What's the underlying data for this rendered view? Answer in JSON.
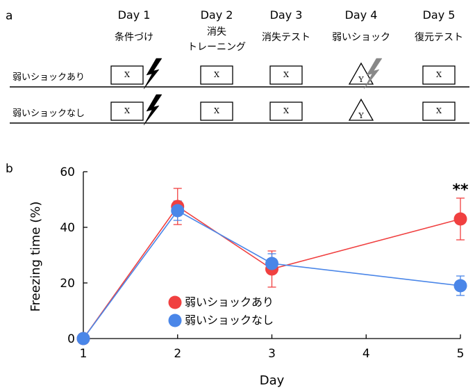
{
  "panel_a": {
    "label": "a",
    "days": [
      {
        "day": "Day 1",
        "step": [
          "条件づけ"
        ]
      },
      {
        "day": "Day 2",
        "step": [
          "消失",
          "トレーニング"
        ]
      },
      {
        "day": "Day 3",
        "step": [
          "消失テスト"
        ]
      },
      {
        "day": "Day 4",
        "step": [
          "弱いショック"
        ]
      },
      {
        "day": "Day 5",
        "step": [
          "復元テスト"
        ]
      }
    ],
    "rows": [
      {
        "label": "弱いショックあり",
        "contexts": [
          "X",
          "X",
          "X",
          "Y",
          "X"
        ],
        "shocks": [
          {
            "day": 1,
            "color": "#000000"
          },
          {
            "day": 4,
            "color": "#888888"
          }
        ]
      },
      {
        "label": "弱いショックなし",
        "contexts": [
          "X",
          "X",
          "X",
          "Y",
          "X"
        ],
        "shocks": [
          {
            "day": 1,
            "color": "#000000"
          }
        ]
      }
    ]
  },
  "panel_b": {
    "label": "b"
  },
  "chart_data": {
    "type": "line",
    "xlabel": "Day",
    "ylabel": "Freezing time (%)",
    "x": [
      1,
      2,
      3,
      4,
      5
    ],
    "xlim": [
      1,
      5
    ],
    "ylim": [
      0,
      60
    ],
    "yticks": [
      0,
      20,
      40,
      60
    ],
    "xticks": [
      1,
      2,
      3,
      4,
      5
    ],
    "legend_position": "lower-center",
    "series": [
      {
        "name": "弱いショックあり",
        "color": "#f04040",
        "points": [
          {
            "x": 1,
            "y": 0,
            "err": 0
          },
          {
            "x": 2,
            "y": 47.5,
            "err": 6.5
          },
          {
            "x": 3,
            "y": 25,
            "err": 6.5
          },
          {
            "x": 5,
            "y": 43,
            "err": 7.5
          }
        ]
      },
      {
        "name": "弱いショックなし",
        "color": "#4a86e8",
        "points": [
          {
            "x": 1,
            "y": 0,
            "err": 0
          },
          {
            "x": 2,
            "y": 46,
            "err": 3.5
          },
          {
            "x": 3,
            "y": 27,
            "err": 3.5
          },
          {
            "x": 5,
            "y": 19,
            "err": 3.5
          }
        ]
      }
    ],
    "annotations": [
      {
        "x": 5,
        "text": "**"
      }
    ]
  }
}
